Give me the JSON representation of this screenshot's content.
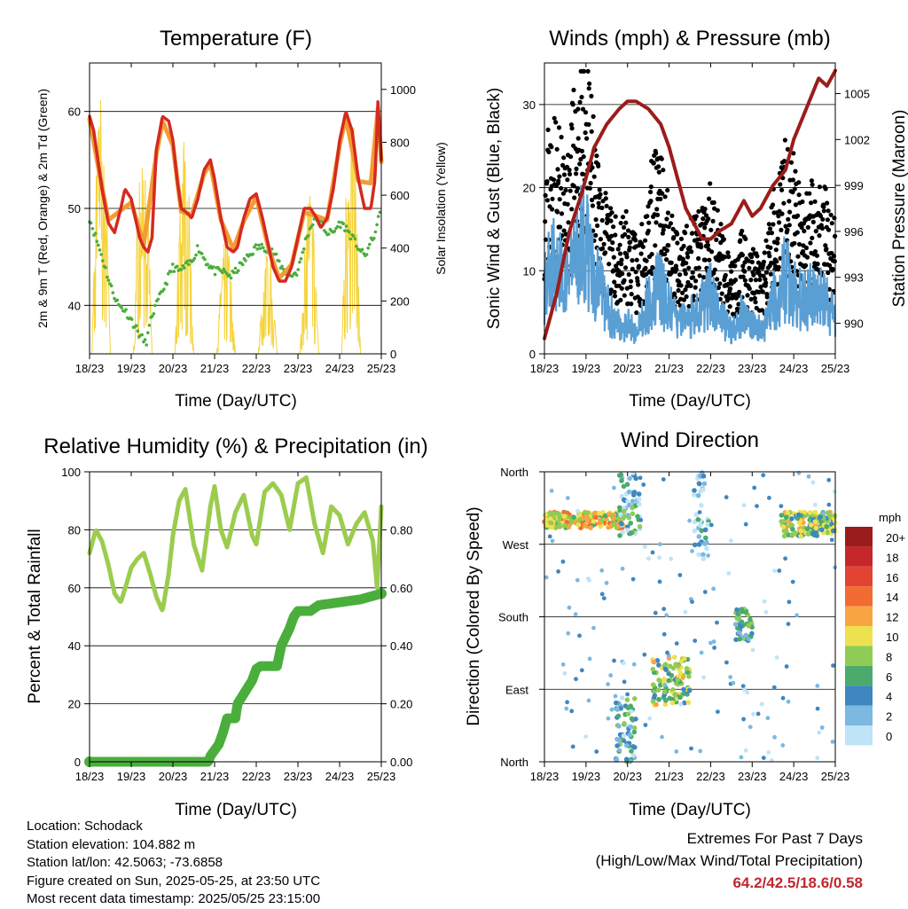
{
  "panels": {
    "temperature": {
      "title": "Temperature (F)",
      "ylabel_left": "2m & 9m T (Red, Orange) & 2m Td (Green)",
      "ylabel_right": "Solar Insolation (Yellow)",
      "xlabel": "Time (Day/UTC)"
    },
    "winds": {
      "title": "Winds (mph) & Pressure (mb)",
      "ylabel_left": "Sonic Wind & Gust (Blue, Black)",
      "ylabel_right": "Station Pressure (Maroon)",
      "xlabel": "Time (Day/UTC)"
    },
    "humidity": {
      "title": "Relative Humidity (%) & Precipitation (in)",
      "ylabel_left": "Percent & Total Rainfall",
      "xlabel": "Time (Day/UTC)"
    },
    "direction": {
      "title": "Wind Direction",
      "ylabel_left": "Direction (Colored By Speed)",
      "xlabel": "Time (Day/UTC)",
      "colorbar_title": "mph"
    }
  },
  "info": {
    "location": "Location: Schodack",
    "elevation": "Station elevation: 104.882 m",
    "latlon": "Station lat/lon: 42.5063; -73.6858",
    "created": "Figure created on Sun, 2025-05-25, at 23:50 UTC",
    "recent": "Most recent data timestamp: 2025/05/25 23:15:00"
  },
  "extremes": {
    "heading": "Extremes For Past 7 Days",
    "subheading": "(High/Low/Max Wind/Total Precipitation)",
    "values": "64.2/42.5/18.6/0.58"
  },
  "colors": {
    "temp_2m": "#d42a20",
    "temp_9m": "#f39c33",
    "dewpoint": "#4aae3c",
    "solar": "#f5d33b",
    "gust": "#000000",
    "wind": "#5a9fd4",
    "pressure": "#9b1c1c",
    "rh": "#9ccc4e",
    "precip": "#4aae3c"
  },
  "chart_data": [
    {
      "type": "line",
      "title": "Temperature (F)",
      "xlabel": "Time (Day/UTC)",
      "ylabel": "2m & 9m T (Red, Orange) & 2m Td (Green)",
      "y2label": "Solar Insolation (Yellow)",
      "ylim": [
        35,
        65
      ],
      "y2lim": [
        0,
        1100
      ],
      "yticks": [
        "40",
        "50",
        "60"
      ],
      "y2ticks": [
        "0",
        "200",
        "400",
        "600",
        "800",
        "1000"
      ],
      "x_ticks": [
        "18/23",
        "19/23",
        "20/23",
        "21/23",
        "22/23",
        "23/23",
        "24/23",
        "25/23"
      ],
      "series": [
        {
          "name": "2m T",
          "color": "#d42a20",
          "x": [
            0,
            0.1,
            0.2,
            0.3,
            0.45,
            0.6,
            0.75,
            0.85,
            1.0,
            1.1,
            1.2,
            1.3,
            1.4,
            1.5,
            1.6,
            1.75,
            1.9,
            2.0,
            2.1,
            2.2,
            2.35,
            2.45,
            2.6,
            2.75,
            2.9,
            3.0,
            3.15,
            3.3,
            3.45,
            3.55,
            3.7,
            3.85,
            4.0,
            4.15,
            4.3,
            4.4,
            4.55,
            4.7,
            4.85,
            5.0,
            5.15,
            5.3,
            5.45,
            5.55,
            5.7,
            5.85,
            6.0,
            6.15,
            6.3,
            6.45,
            6.6,
            6.75,
            6.85,
            6.92,
            7.0
          ],
          "y": [
            59.5,
            58,
            55,
            52,
            48.5,
            47.5,
            50,
            52,
            51,
            49,
            47,
            46,
            45.5,
            47,
            56,
            59.5,
            59,
            57,
            53,
            50,
            49.5,
            49,
            51,
            54,
            55,
            53,
            49,
            46,
            45.5,
            46,
            49,
            51,
            51.5,
            49,
            46,
            44,
            42.5,
            42.5,
            44,
            47,
            50,
            50,
            49,
            48,
            49,
            52,
            57,
            60,
            58,
            53,
            50,
            50,
            53,
            61,
            55
          ]
        },
        {
          "name": "9m T",
          "color": "#f39c33",
          "x": [
            0,
            0.2,
            0.45,
            0.75,
            1.0,
            1.3,
            1.6,
            1.75,
            2.0,
            2.2,
            2.45,
            2.75,
            2.9,
            3.15,
            3.45,
            3.7,
            4.0,
            4.3,
            4.55,
            4.85,
            5.15,
            5.45,
            5.7,
            6.0,
            6.15,
            6.45,
            6.75,
            6.92,
            7.0
          ],
          "y": [
            59.2,
            54.5,
            48.8,
            49.8,
            50.6,
            46.3,
            55.5,
            59,
            56.5,
            49.7,
            49.3,
            53.6,
            54.6,
            48.8,
            45.8,
            48.7,
            51.2,
            45.8,
            42.8,
            44.2,
            49.6,
            49.2,
            48.8,
            56.5,
            59.4,
            52.8,
            52.6,
            60.3,
            54.8
          ]
        },
        {
          "name": "2m Td",
          "color": "#4aae3c",
          "x": [
            0,
            0.15,
            0.3,
            0.5,
            0.7,
            0.85,
            1.0,
            1.2,
            1.35,
            1.5,
            1.7,
            1.9,
            2.0,
            2.15,
            2.3,
            2.45,
            2.6,
            2.8,
            3.0,
            3.2,
            3.4,
            3.6,
            3.8,
            4.0,
            4.2,
            4.4,
            4.6,
            4.8,
            5.0,
            5.2,
            5.4,
            5.55,
            5.7,
            5.85,
            6.0,
            6.15,
            6.3,
            6.45,
            6.6,
            6.75,
            6.9,
            7.0
          ],
          "y": [
            49,
            47,
            45,
            42,
            40,
            39.5,
            38.5,
            37,
            36,
            39,
            41,
            43,
            44,
            43.5,
            44,
            44.5,
            46,
            44.5,
            43.5,
            43.5,
            43,
            44,
            45,
            46,
            46,
            45.5,
            44,
            43,
            43.5,
            47,
            49,
            48.5,
            47.5,
            47.5,
            48.5,
            48,
            47,
            46,
            45,
            46.5,
            48,
            51
          ]
        },
        {
          "name": "Solar Insolation",
          "color": "#f5d33b",
          "axis": "y2",
          "days": [
            0,
            1,
            2,
            3,
            4,
            5,
            6
          ],
          "peak": [
            1000,
            900,
            850,
            450,
            400,
            650,
            980
          ]
        }
      ]
    },
    {
      "type": "scatter",
      "title": "Winds (mph) & Pressure (mb)",
      "xlabel": "Time (Day/UTC)",
      "ylabel": "Sonic Wind & Gust (Blue, Black)",
      "y2label": "Station Pressure (Maroon)",
      "ylim": [
        0,
        35
      ],
      "y2lim": [
        988,
        1007
      ],
      "yticks": [
        "0",
        "10",
        "20",
        "30"
      ],
      "y2ticks": [
        "990",
        "993",
        "996",
        "999",
        "1002",
        "1005"
      ],
      "x_ticks": [
        "18/23",
        "19/23",
        "20/23",
        "21/23",
        "22/23",
        "23/23",
        "24/23",
        "25/23"
      ],
      "series": [
        {
          "name": "Gust",
          "color": "#000000",
          "x": [
            0,
            0.25,
            0.5,
            0.75,
            1.0,
            1.25,
            1.5,
            1.75,
            2.0,
            2.25,
            2.5,
            2.75,
            3.0,
            3.25,
            3.5,
            3.75,
            4.0,
            4.25,
            4.5,
            4.75,
            5.0,
            5.25,
            5.5,
            5.75,
            6.0,
            6.25,
            6.5,
            6.75,
            7.0
          ],
          "y": [
            20,
            22,
            18,
            25,
            29,
            18,
            14,
            12,
            13,
            10,
            16,
            20,
            14,
            10,
            12,
            13,
            16,
            12,
            8,
            11,
            10,
            8,
            15,
            20,
            18,
            14,
            16,
            15,
            12
          ]
        },
        {
          "name": "Wind",
          "color": "#5a9fd4",
          "x": [
            0,
            0.25,
            0.5,
            0.75,
            1.0,
            1.25,
            1.5,
            1.75,
            2.0,
            2.25,
            2.5,
            2.75,
            3.0,
            3.25,
            3.5,
            3.75,
            4.0,
            4.25,
            4.5,
            4.75,
            5.0,
            5.25,
            5.5,
            5.75,
            6.0,
            6.25,
            6.5,
            6.75,
            7.0
          ],
          "y": [
            10,
            12,
            9,
            13,
            15,
            10,
            6,
            4,
            4,
            3,
            7,
            9,
            6,
            4,
            5,
            6,
            8,
            5,
            3,
            5,
            4,
            3,
            7,
            10,
            9,
            7,
            8,
            7,
            5
          ]
        },
        {
          "name": "Pressure",
          "color": "#9b1c1c",
          "axis": "y2",
          "x": [
            0,
            0.3,
            0.6,
            0.9,
            1.0,
            1.2,
            1.5,
            1.8,
            2.0,
            2.2,
            2.5,
            2.8,
            3.0,
            3.2,
            3.4,
            3.6,
            3.8,
            4.0,
            4.2,
            4.5,
            4.8,
            5.0,
            5.2,
            5.5,
            5.8,
            6.0,
            6.3,
            6.6,
            6.8,
            7.0
          ],
          "y": [
            989,
            992,
            996,
            998.5,
            999.5,
            1001.5,
            1003,
            1004,
            1004.5,
            1004.5,
            1004,
            1003,
            1001.5,
            999.5,
            997.5,
            996.5,
            995.5,
            995.5,
            996,
            996.5,
            998,
            997,
            997.5,
            999,
            1000,
            1002,
            1004,
            1006,
            1005.5,
            1006.5
          ]
        }
      ]
    },
    {
      "type": "line",
      "title": "Relative Humidity (%) & Precipitation (in)",
      "xlabel": "Time (Day/UTC)",
      "ylabel": "Percent & Total Rainfall",
      "ylim": [
        0,
        100
      ],
      "y2lim": [
        0,
        1
      ],
      "yticks": [
        "0",
        "20",
        "40",
        "60",
        "80",
        "100"
      ],
      "y2ticks": [
        "0.00",
        "0.20",
        "0.40",
        "0.60",
        "0.80"
      ],
      "x_ticks": [
        "18/23",
        "19/23",
        "20/23",
        "21/23",
        "22/23",
        "23/23",
        "24/23",
        "25/23"
      ],
      "series": [
        {
          "name": "Relative Humidity",
          "color": "#9ccc4e",
          "x": [
            0,
            0.15,
            0.3,
            0.45,
            0.6,
            0.75,
            0.9,
            1.0,
            1.15,
            1.3,
            1.45,
            1.6,
            1.75,
            1.9,
            2.0,
            2.15,
            2.3,
            2.5,
            2.7,
            2.9,
            3.0,
            3.15,
            3.3,
            3.5,
            3.7,
            3.9,
            4.0,
            4.2,
            4.4,
            4.6,
            4.8,
            5.0,
            5.2,
            5.4,
            5.6,
            5.8,
            6.0,
            6.2,
            6.4,
            6.6,
            6.8,
            6.9,
            7.0
          ],
          "y": [
            72,
            80,
            76,
            68,
            58,
            55,
            62,
            67,
            70,
            72,
            65,
            57,
            52,
            65,
            78,
            90,
            94,
            75,
            66,
            88,
            95,
            80,
            74,
            86,
            92,
            78,
            75,
            93,
            96,
            92,
            80,
            96,
            98,
            82,
            72,
            88,
            85,
            75,
            82,
            86,
            76,
            60,
            88
          ]
        },
        {
          "name": "Total Precipitation",
          "color": "#4aae3c",
          "axis": "y2",
          "x": [
            0,
            2.85,
            2.9,
            3.1,
            3.2,
            3.3,
            3.5,
            3.55,
            3.9,
            4.0,
            4.1,
            4.5,
            4.6,
            4.8,
            4.9,
            5.0,
            5.3,
            5.5,
            6.0,
            6.5,
            7.0
          ],
          "y": [
            0,
            0,
            0.02,
            0.06,
            0.1,
            0.15,
            0.15,
            0.2,
            0.28,
            0.32,
            0.33,
            0.33,
            0.4,
            0.46,
            0.5,
            0.52,
            0.52,
            0.54,
            0.55,
            0.56,
            0.58
          ]
        }
      ]
    },
    {
      "type": "scatter",
      "title": "Wind Direction",
      "xlabel": "Time (Day/UTC)",
      "ylabel": "Direction (Colored By Speed)",
      "ylim": [
        0,
        360
      ],
      "yticks": [
        "North",
        "East",
        "South",
        "West",
        "North"
      ],
      "x_ticks": [
        "18/23",
        "19/23",
        "20/23",
        "21/23",
        "22/23",
        "23/23",
        "24/23",
        "25/23"
      ],
      "colorbar": {
        "title": "mph",
        "labels": [
          "20+",
          "18",
          "16",
          "14",
          "12",
          "10",
          "8",
          "6",
          "4",
          "2",
          "0"
        ],
        "colors": [
          "#9b1c1c",
          "#c6272b",
          "#e34333",
          "#f26b32",
          "#f9a443",
          "#eee14f",
          "#8fcc55",
          "#4aab6c",
          "#3f87c0",
          "#7cb8e2",
          "#bfe3f7"
        ]
      },
      "clusters": [
        {
          "x": [
            0,
            1.9
          ],
          "dir": [
            290,
            310
          ],
          "speed": 10
        },
        {
          "x": [
            1.8,
            2.3
          ],
          "dir": [
            280,
            360
          ],
          "speed": 4
        },
        {
          "x": [
            2.6,
            3.5
          ],
          "dir": [
            70,
            130
          ],
          "speed": 8
        },
        {
          "x": [
            3.6,
            3.95
          ],
          "dir": [
            250,
            360
          ],
          "speed": 2
        },
        {
          "x": [
            4.6,
            5.0
          ],
          "dir": [
            150,
            190
          ],
          "speed": 5
        },
        {
          "x": [
            5.7,
            7.0
          ],
          "dir": [
            280,
            310
          ],
          "speed": 8
        },
        {
          "x": [
            1.7,
            2.2
          ],
          "dir": [
            0,
            80
          ],
          "speed": 4
        }
      ]
    }
  ]
}
